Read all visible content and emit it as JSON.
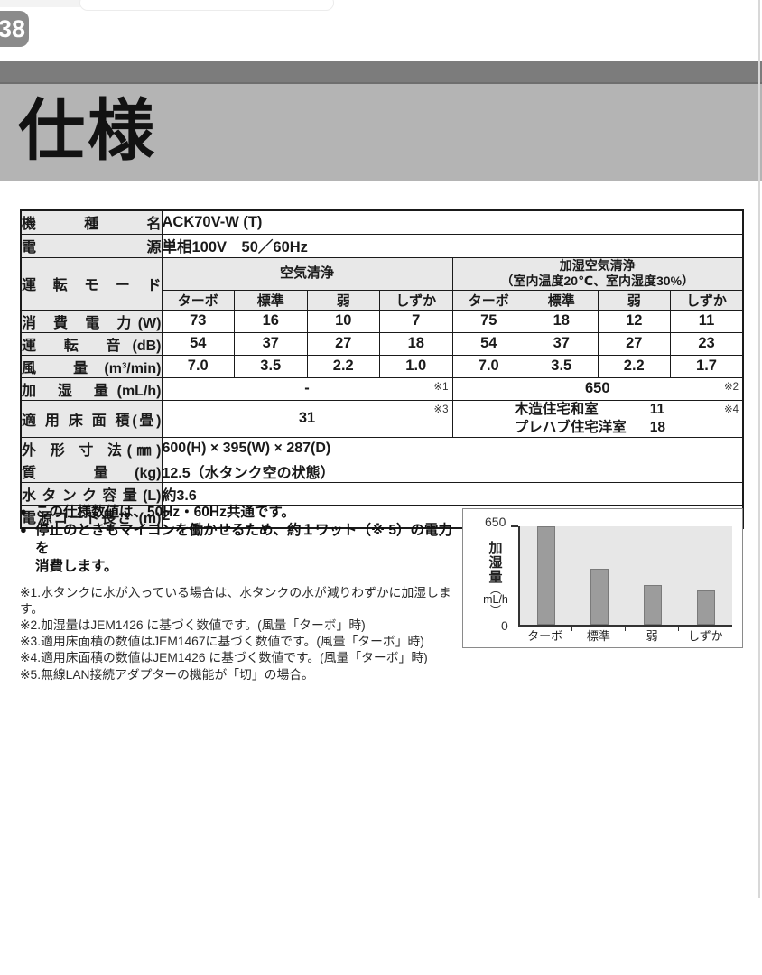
{
  "page": {
    "number": "38",
    "title": "仕様"
  },
  "spec_table": {
    "model_label": "機 種 名",
    "model_value": "ACK70V-W (T)",
    "power_label": "電 源",
    "power_value": "単相100V　50／60Hz",
    "mode_label": "運 転 モ ー ド",
    "group1": "空気清浄",
    "group2_line1": "加湿空気清浄",
    "group2_line2": "（室内温度20℃、室内湿度30%）",
    "modes": [
      "ターボ",
      "標準",
      "弱",
      "しずか"
    ],
    "rows": [
      {
        "label": "消 費 電 力(W)",
        "values": [
          "73",
          "16",
          "10",
          "7",
          "75",
          "18",
          "12",
          "11"
        ]
      },
      {
        "label": "運 転 音(dB)",
        "values": [
          "54",
          "37",
          "27",
          "18",
          "54",
          "37",
          "27",
          "23"
        ]
      },
      {
        "label": "風 量(m³/min)",
        "values": [
          "7.0",
          "3.5",
          "2.2",
          "1.0",
          "7.0",
          "3.5",
          "2.2",
          "1.7"
        ]
      }
    ],
    "humid_label": "加 湿 量(mL/h)",
    "humid_left": "-",
    "humid_left_note": "※1",
    "humid_right": "650",
    "humid_right_note": "※2",
    "floor_label": "適 用 床 面 積(畳)",
    "floor_left": "31",
    "floor_left_note": "※3",
    "floor_right": [
      {
        "name": "木造住宅和室",
        "value": "11"
      },
      {
        "name": "プレハブ住宅洋室",
        "value": "18"
      }
    ],
    "floor_right_note": "※4",
    "dims_label": "外 形 寸 法(㎜)",
    "dims_value": "600(H) × 395(W) × 287(D)",
    "weight_label": "質 量(kg)",
    "weight_value": "12.5（水タンク空の状態）",
    "tank_label": "水タンク容量(L)",
    "tank_value": "約3.6",
    "cord_label": "電源コード長さ (m)",
    "cord_value": "2"
  },
  "notes": {
    "bullets": {
      "b1": "この仕様数値は、50Hz・60Hz共通です。",
      "b2_line1": "停止のときもマイコンを働かせるため、約１ワット（※ 5）の電力を",
      "b2_line2": "消費します。"
    },
    "footnotes": [
      "※1.水タンクに水が入っている場合は、水タンクの水が減りわずかに加湿します。",
      "※2.加湿量はJEM1426 に基づく数値です。(風量「ターボ」時)",
      "※3.適用床面積の数値はJEM1467に基づく数値です。(風量「ターボ」時)",
      "※4.適用床面積の数値はJEM1426 に基づく数値です。(風量「ターボ」時)",
      "※5.無線LAN接続アダプターの機能が「切」の場合。"
    ]
  },
  "chart_data": {
    "type": "bar",
    "categories": [
      "ターボ",
      "標準",
      "弱",
      "しずか"
    ],
    "values": [
      650,
      370,
      260,
      225
    ],
    "title": "",
    "xlabel": "",
    "ylabel": "加湿量（mL/h）",
    "ylabel_lines": [
      "加",
      "湿",
      "量",
      "︵",
      "mL/h",
      "︶"
    ],
    "yticks": [
      "0",
      "650"
    ],
    "ylim": [
      0,
      650
    ],
    "grid": false,
    "plot_bg": "#e7e7e7",
    "bar_color": "#9c9c9c"
  },
  "colors": {
    "dark_bar": "#7c7c7c",
    "title_band": "#b4b4b4",
    "table_header_bg": "#e8e8e8",
    "badge_bg": "#8b8b8b"
  }
}
